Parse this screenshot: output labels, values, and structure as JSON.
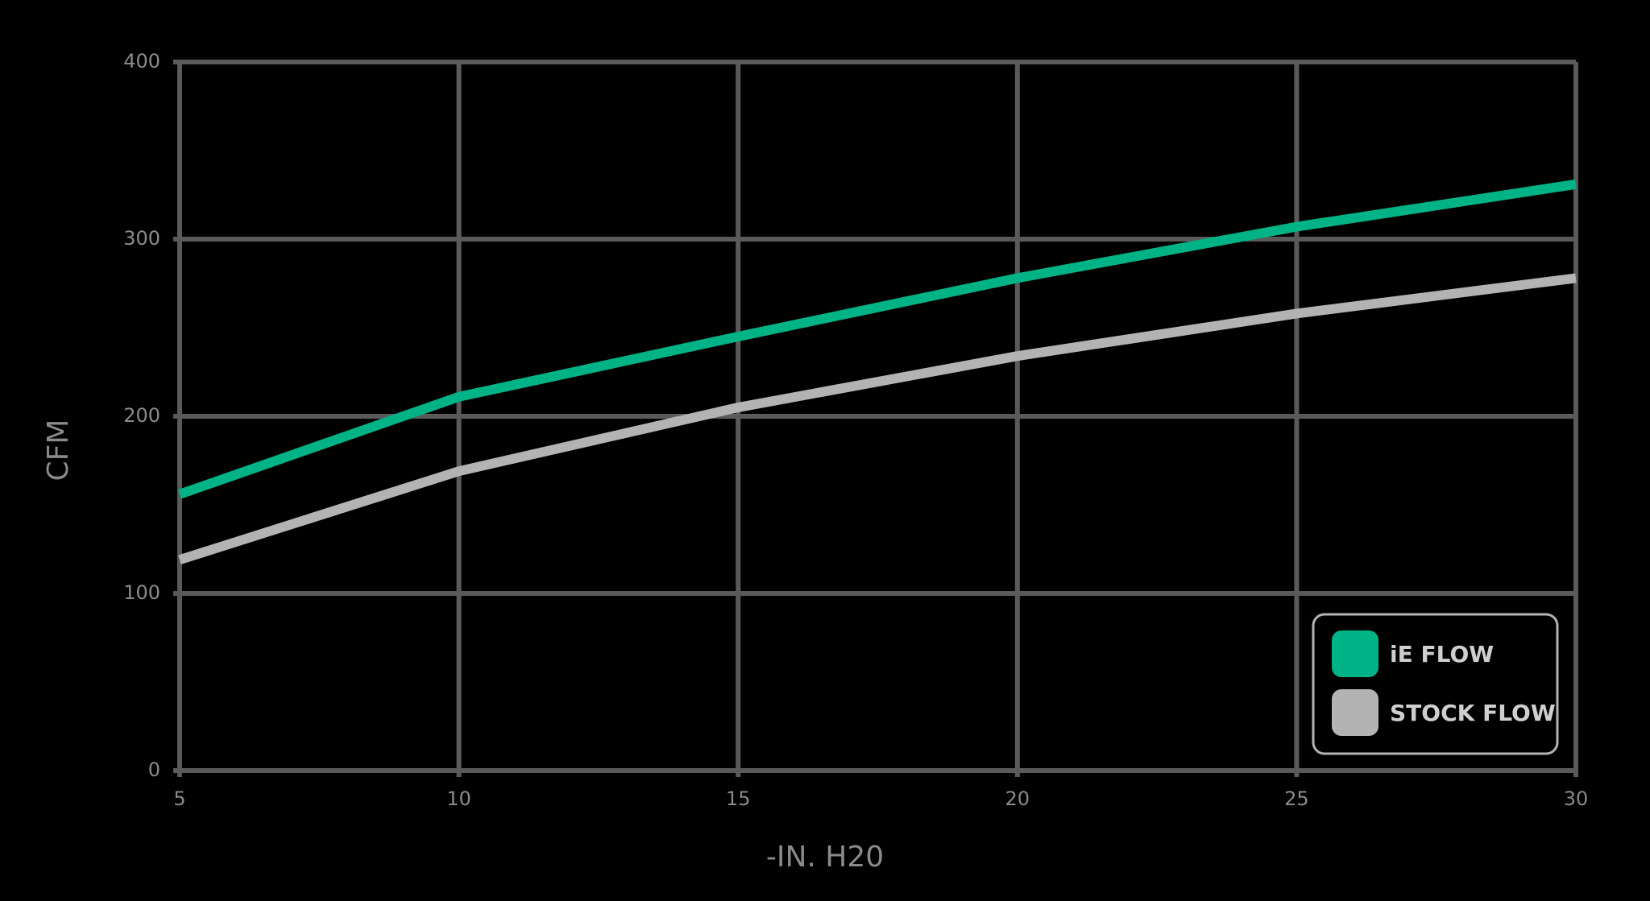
{
  "chart_data": {
    "type": "line",
    "x_label": "-IN. H20",
    "y_label": "CFM",
    "x": [
      5,
      10,
      15,
      20,
      25,
      30
    ],
    "series": [
      {
        "name": "iE FLOW",
        "color": "#00b386",
        "values": [
          156,
          211,
          245,
          278,
          307,
          331
        ]
      },
      {
        "name": "STOCK FLOW",
        "color": "#b3b3b3",
        "values": [
          119,
          169,
          205,
          234,
          258,
          278
        ]
      }
    ],
    "xlim": [
      5,
      30
    ],
    "xticks": [
      5,
      10,
      15,
      20,
      25,
      30
    ],
    "ylim": [
      0,
      400
    ],
    "yticks": [
      0,
      100,
      200,
      300,
      400
    ],
    "grid": true,
    "legend": "lower right"
  }
}
